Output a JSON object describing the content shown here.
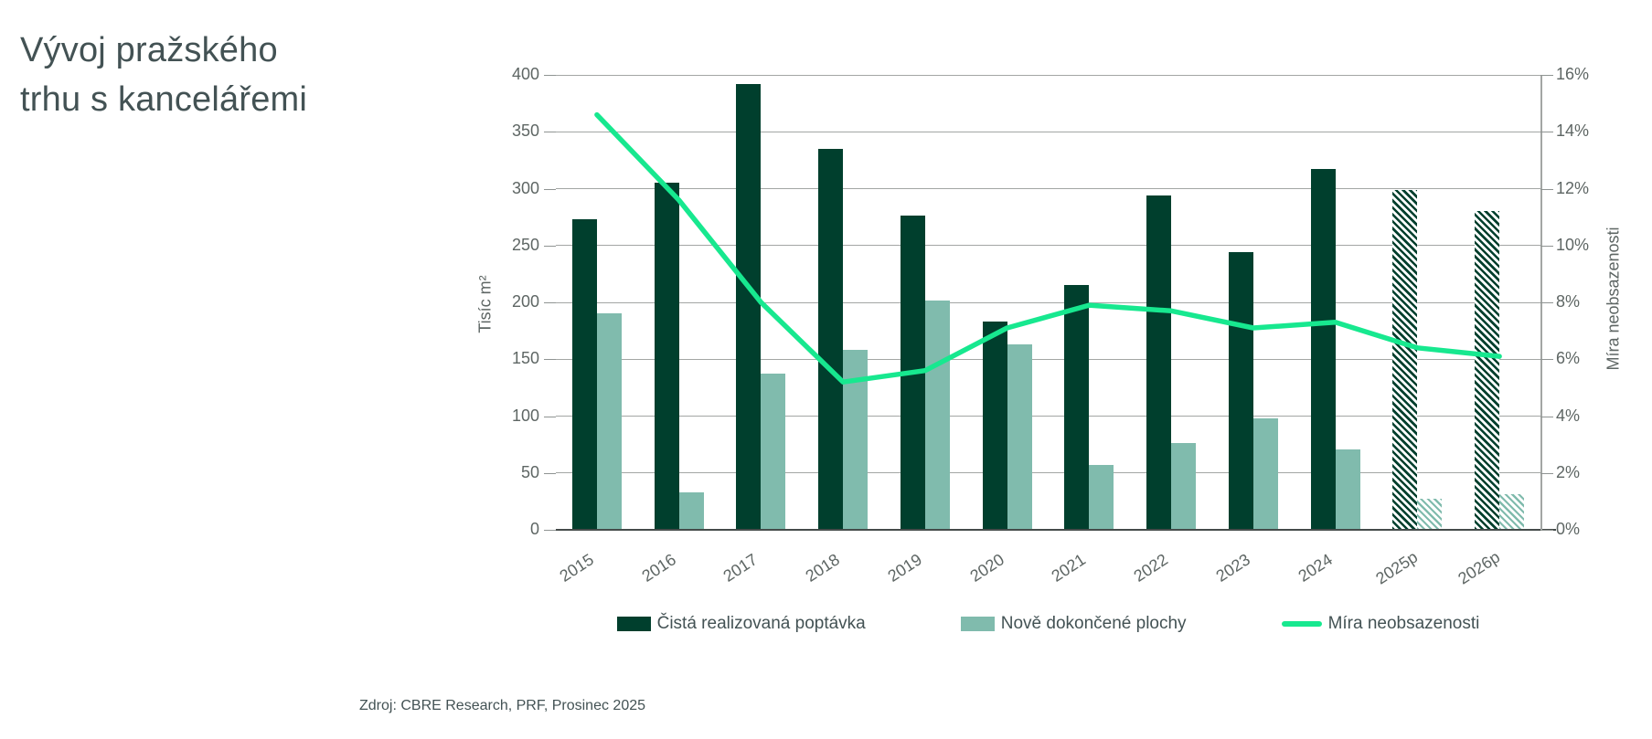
{
  "page": {
    "title_line1": "Vývoj pražského",
    "title_line2": "trhu s kancelářemi",
    "source": "Zdroj: CBRE Research, PRF, Prosinec 2025"
  },
  "chart_data": {
    "type": "bar",
    "subtype": "clustered-bars-with-line",
    "categories": [
      "2015",
      "2016",
      "2017",
      "2018",
      "2019",
      "2020",
      "2021",
      "2022",
      "2023",
      "2024",
      "2025p",
      "2026p"
    ],
    "forecast_categories": [
      "2025p",
      "2026p"
    ],
    "series": [
      {
        "name": "Čistá realizovaná poptávka",
        "type": "bar",
        "axis": "left",
        "color": "#003F2D",
        "values": [
          273,
          305,
          392,
          335,
          276,
          183,
          215,
          294,
          244,
          317,
          299,
          280
        ]
      },
      {
        "name": "Nově dokončené plochy",
        "type": "bar",
        "axis": "left",
        "color": "#80BBAD",
        "values": [
          190,
          33,
          137,
          158,
          202,
          163,
          57,
          76,
          98,
          71,
          27,
          31
        ]
      },
      {
        "name": "Míra neobsazenosti",
        "type": "line",
        "axis": "right",
        "color": "#17E88F",
        "values": [
          14.6,
          11.6,
          8.0,
          5.2,
          5.6,
          7.1,
          7.9,
          7.7,
          7.1,
          7.3,
          6.4,
          6.1
        ]
      }
    ],
    "left_axis": {
      "label": "Tisíc m²",
      "min": 0,
      "max": 400,
      "step": 50,
      "tick_labels": [
        "0",
        "50",
        "100",
        "150",
        "200",
        "250",
        "300",
        "350",
        "400"
      ]
    },
    "right_axis": {
      "label": "Míra neobsazenosti",
      "min": 0,
      "max": 16,
      "step": 2,
      "tick_labels": [
        "0%",
        "2%",
        "4%",
        "6%",
        "8%",
        "10%",
        "12%",
        "14%",
        "16%"
      ]
    },
    "grid": true,
    "legend_position": "bottom"
  }
}
